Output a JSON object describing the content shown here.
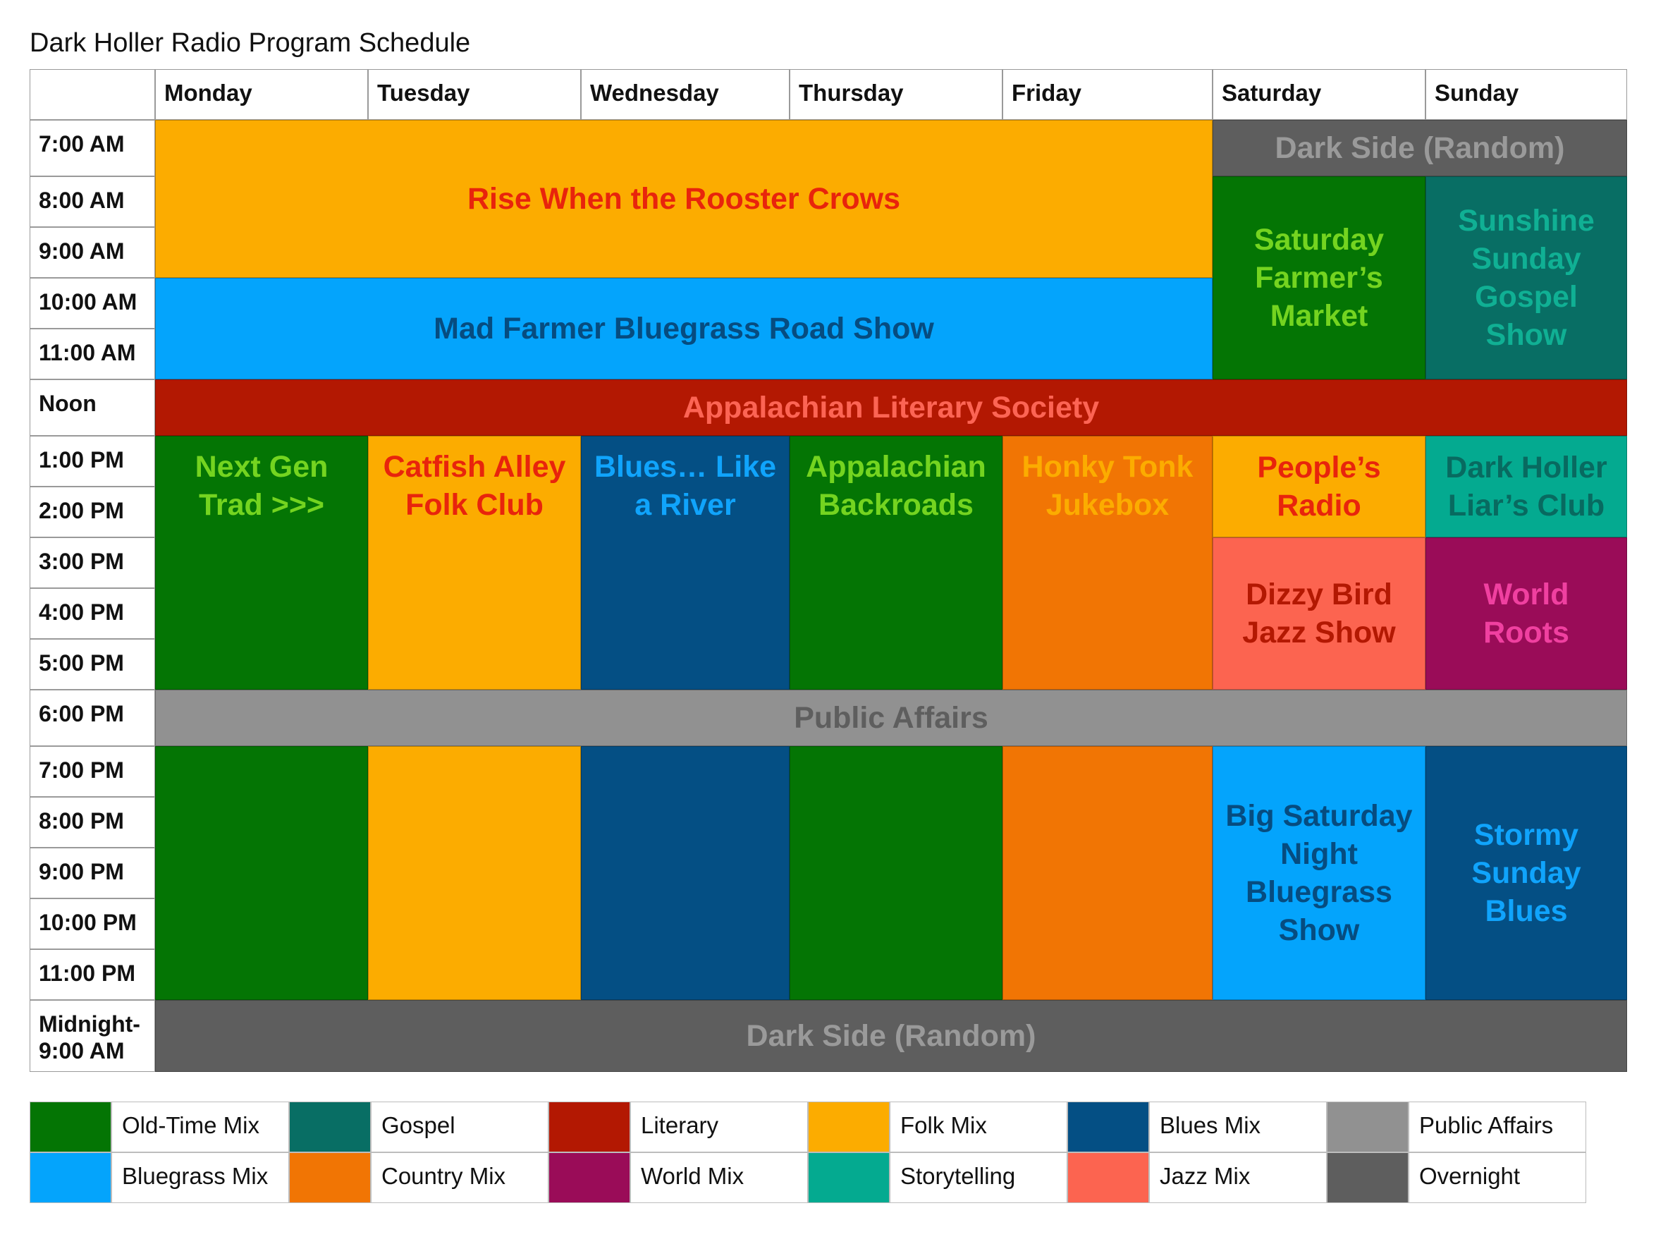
{
  "title": "Dark Holler Radio Program Schedule",
  "days": [
    "Monday",
    "Tuesday",
    "Wednesday",
    "Thursday",
    "Friday",
    "Saturday",
    "Sunday"
  ],
  "times": [
    "7:00 AM",
    "8:00 AM",
    "9:00 AM",
    "10:00 AM",
    "11:00 AM",
    "Noon",
    "1:00 PM",
    "2:00 PM",
    "3:00 PM",
    "4:00 PM",
    "5:00 PM",
    "6:00 PM",
    "7:00 PM",
    "8:00 PM",
    "9:00 PM",
    "10:00 PM",
    "11:00 PM",
    "Midnight-\n9:00 AM"
  ],
  "programs": {
    "rooster": "Rise When the Rooster Crows",
    "dark_side_sat_morning": "Dark Side (Random)",
    "farmers_market": "Saturday Farmer’s Market",
    "sunshine_gospel": "Sunshine Sunday Gospel Show",
    "mad_farmer": "Mad Farmer Bluegrass Road Show",
    "literary": "Appalachian Literary Society",
    "next_gen": "Next Gen Trad >>>",
    "catfish": "Catfish Alley Folk Club",
    "blues_river": "Blues… Like a River",
    "backroads": "Appalachian Backroads",
    "honky_tonk": "Honky Tonk Jukebox",
    "peoples_radio": "People’s Radio",
    "liars_club": "Dark Holler Liar’s Club",
    "dizzy_bird": "Dizzy Bird Jazz Show",
    "world_roots": "World Roots",
    "public_affairs": "Public Affairs",
    "big_saturday": "Big Saturday Night Bluegrass Show",
    "stormy_sunday": "Stormy Sunday Blues",
    "dark_side_overnight": "Dark Side (Random)"
  },
  "legend": [
    {
      "label": "Old-Time Mix",
      "color": "#047504"
    },
    {
      "label": "Gospel",
      "color": "#086e64"
    },
    {
      "label": "Literary",
      "color": "#b31802"
    },
    {
      "label": "Folk Mix",
      "color": "#fcac00"
    },
    {
      "label": "Blues Mix",
      "color": "#044f84"
    },
    {
      "label": "Public Affairs",
      "color": "#919191"
    },
    {
      "label": "Bluegrass Mix",
      "color": "#04a4fc"
    },
    {
      "label": "Country Mix",
      "color": "#f17504"
    },
    {
      "label": "World Mix",
      "color": "#9a0c58"
    },
    {
      "label": "Storytelling",
      "color": "#04aa90"
    },
    {
      "label": "Jazz Mix",
      "color": "#fc6450"
    },
    {
      "label": "Overnight",
      "color": "#5e5e5e"
    }
  ]
}
